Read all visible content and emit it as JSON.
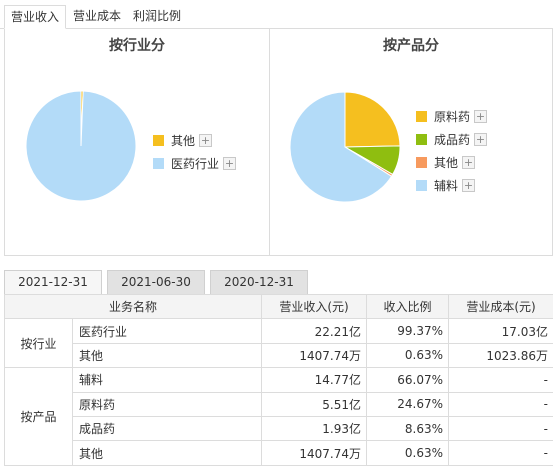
{
  "tabs": [
    {
      "label": "营业收入",
      "active": true
    },
    {
      "label": "营业成本",
      "active": false
    },
    {
      "label": "利润比例",
      "active": false
    }
  ],
  "industry_panel": {
    "title": "按行业分",
    "legend": [
      {
        "label": "其他",
        "color": "#f5bf1f",
        "plus": "+"
      },
      {
        "label": "医药行业",
        "color": "#b3dbf8",
        "plus": "+"
      }
    ]
  },
  "product_panel": {
    "title": "按产品分",
    "legend": [
      {
        "label": "原料药",
        "color": "#f5bf1f",
        "plus": "+"
      },
      {
        "label": "成品药",
        "color": "#8fbe10",
        "plus": "+"
      },
      {
        "label": "其他",
        "color": "#f79a5e",
        "plus": "+"
      },
      {
        "label": "辅料",
        "color": "#b3dbf8",
        "plus": "+"
      }
    ]
  },
  "chart_data": [
    {
      "type": "pie",
      "title": "按行业分",
      "slices": [
        {
          "name": "其他",
          "value": 0.63,
          "color": "#f5bf1f"
        },
        {
          "name": "医药行业",
          "value": 99.37,
          "color": "#b3dbf8"
        }
      ]
    },
    {
      "type": "pie",
      "title": "按产品分",
      "slices": [
        {
          "name": "原料药",
          "value": 24.67,
          "color": "#f5bf1f"
        },
        {
          "name": "成品药",
          "value": 8.63,
          "color": "#8fbe10"
        },
        {
          "name": "其他",
          "value": 0.63,
          "color": "#f79a5e"
        },
        {
          "name": "辅料",
          "value": 66.07,
          "color": "#b3dbf8"
        }
      ]
    }
  ],
  "date_tabs": [
    {
      "label": "2021-12-31",
      "active": true
    },
    {
      "label": "2021-06-30",
      "active": false
    },
    {
      "label": "2020-12-31",
      "active": false
    }
  ],
  "table": {
    "headers": {
      "name": "业务名称",
      "revenue": "营业收入(元)",
      "ratio": "收入比例",
      "cost": "营业成本(元)"
    },
    "groups": [
      {
        "category": "按行业",
        "rows": [
          {
            "name": "医药行业",
            "revenue": "22.21亿",
            "ratio": "99.37%",
            "cost": "17.03亿"
          },
          {
            "name": "其他",
            "revenue": "1407.74万",
            "ratio": "0.63%",
            "cost": "1023.86万"
          }
        ]
      },
      {
        "category": "按产品",
        "rows": [
          {
            "name": "辅料",
            "revenue": "14.77亿",
            "ratio": "66.07%",
            "cost": "-"
          },
          {
            "name": "原料药",
            "revenue": "5.51亿",
            "ratio": "24.67%",
            "cost": "-"
          },
          {
            "name": "成品药",
            "revenue": "1.93亿",
            "ratio": "8.63%",
            "cost": "-"
          },
          {
            "name": "其他",
            "revenue": "1407.74万",
            "ratio": "0.63%",
            "cost": "-"
          }
        ]
      }
    ]
  }
}
